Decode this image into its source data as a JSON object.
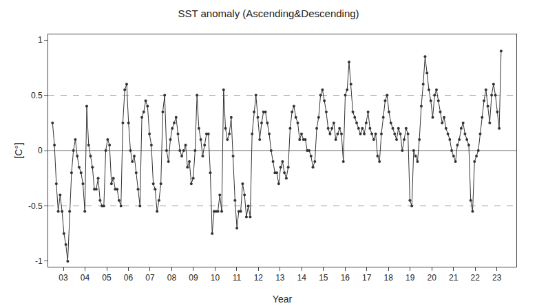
{
  "chart_data": {
    "type": "line",
    "title": "SST anomaly (Ascending&Descending)",
    "xlabel": "Year",
    "ylabel": "[C°]",
    "xlim": [
      2002.3,
      2023.9
    ],
    "ylim": [
      -1.05,
      1.05
    ],
    "yticks": [
      -1,
      -0.5,
      0,
      0.5,
      1
    ],
    "xticks": [
      {
        "value": 2003,
        "label": "03"
      },
      {
        "value": 2004,
        "label": "04"
      },
      {
        "value": 2005,
        "label": "05"
      },
      {
        "value": 2006,
        "label": "06"
      },
      {
        "value": 2007,
        "label": "07"
      },
      {
        "value": 2008,
        "label": "08"
      },
      {
        "value": 2009,
        "label": "09"
      },
      {
        "value": 2010,
        "label": "10"
      },
      {
        "value": 2011,
        "label": "11"
      },
      {
        "value": 2012,
        "label": "12"
      },
      {
        "value": 2013,
        "label": "13"
      },
      {
        "value": 2014,
        "label": "14"
      },
      {
        "value": 2015,
        "label": "15"
      },
      {
        "value": 2016,
        "label": "16"
      },
      {
        "value": 2017,
        "label": "17"
      },
      {
        "value": 2018,
        "label": "18"
      },
      {
        "value": 2019,
        "label": "19"
      },
      {
        "value": 2020,
        "label": "20"
      },
      {
        "value": 2021,
        "label": "21"
      },
      {
        "value": 2022,
        "label": "22"
      },
      {
        "value": 2023,
        "label": "23"
      }
    ],
    "grid": false,
    "color": "#333333",
    "marker": "circle",
    "line_style": "solid",
    "hlines": [
      {
        "value": 0,
        "line_style": "solid",
        "color": "#666666"
      },
      {
        "value": 0.5,
        "line_style": "dashed",
        "color": "#999999"
      },
      {
        "value": -0.5,
        "line_style": "dashed",
        "color": "#999999"
      }
    ],
    "x": [
      2002.5,
      2002.5877,
      2002.6754,
      2002.7631,
      2002.8508,
      2002.9385,
      2003.0262,
      2003.1139,
      2003.2016,
      2003.2893,
      2003.377,
      2003.4647,
      2003.5524,
      2003.6401,
      2003.7278,
      2003.8155,
      2003.9032,
      2003.9909,
      2004.0786,
      2004.1663,
      2004.254,
      2004.3417,
      2004.4294,
      2004.5171,
      2004.6048,
      2004.6925,
      2004.7802,
      2004.8679,
      2004.9556,
      2005.0433,
      2005.131,
      2005.2187,
      2005.3064,
      2005.3941,
      2005.4818,
      2005.5695,
      2005.6572,
      2005.7449,
      2005.8326,
      2005.9203,
      2006.008,
      2006.0957,
      2006.1834,
      2006.2711,
      2006.3588,
      2006.4465,
      2006.5342,
      2006.6219,
      2006.7096,
      2006.7973,
      2006.885,
      2006.9727,
      2007.0604,
      2007.1481,
      2007.2358,
      2007.3235,
      2007.4112,
      2007.4989,
      2007.5866,
      2007.6743,
      2007.762,
      2007.8497,
      2007.9374,
      2008.0251,
      2008.1128,
      2008.2005,
      2008.2882,
      2008.3759,
      2008.4636,
      2008.5513,
      2008.639,
      2008.7267,
      2008.8144,
      2008.9021,
      2008.9898,
      2009.0775,
      2009.1652,
      2009.2529,
      2009.3406,
      2009.4283,
      2009.516,
      2009.6037,
      2009.6914,
      2009.7791,
      2009.8668,
      2009.9545,
      2010.0422,
      2010.1299,
      2010.2176,
      2010.3053,
      2010.393,
      2010.4807,
      2010.5684,
      2010.6561,
      2010.7438,
      2010.8315,
      2010.9192,
      2011.0069,
      2011.0946,
      2011.1823,
      2011.27,
      2011.3577,
      2011.4454,
      2011.5331,
      2011.6208,
      2011.7085,
      2011.7962,
      2011.8839,
      2011.9716,
      2012.0593,
      2012.147,
      2012.2347,
      2012.3224,
      2012.4101,
      2012.4978,
      2012.5855,
      2012.6732,
      2012.7609,
      2012.8486,
      2012.9363,
      2013.024,
      2013.1117,
      2013.1994,
      2013.2871,
      2013.3748,
      2013.4625,
      2013.5502,
      2013.6379,
      2013.7256,
      2013.8133,
      2013.901,
      2013.9887,
      2014.0764,
      2014.1641,
      2014.2518,
      2014.3395,
      2014.4272,
      2014.5149,
      2014.6026,
      2014.6903,
      2014.778,
      2014.8657,
      2014.9534,
      2015.0411,
      2015.1288,
      2015.2165,
      2015.3042,
      2015.3919,
      2015.4796,
      2015.5673,
      2015.655,
      2015.7427,
      2015.8304,
      2015.9181,
      2016.0058,
      2016.0935,
      2016.1812,
      2016.2689,
      2016.3566,
      2016.4443,
      2016.532,
      2016.6197,
      2016.7074,
      2016.7951,
      2016.8828,
      2016.9705,
      2017.0582,
      2017.1459,
      2017.2336,
      2017.3213,
      2017.409,
      2017.4967,
      2017.5844,
      2017.6721,
      2017.7598,
      2017.8475,
      2017.9352,
      2018.0229,
      2018.1106,
      2018.1983,
      2018.286,
      2018.3737,
      2018.4614,
      2018.5491,
      2018.6368,
      2018.7245,
      2018.8122,
      2018.8999,
      2018.9876,
      2019.0753,
      2019.163,
      2019.2507,
      2019.3384,
      2019.4261,
      2019.5138,
      2019.6015,
      2019.6892,
      2019.7769,
      2019.8646,
      2019.9523,
      2020.04,
      2020.1277,
      2020.2154,
      2020.3031,
      2020.3908,
      2020.4785,
      2020.5662,
      2020.6539,
      2020.7416,
      2020.8293,
      2020.917,
      2021.0047,
      2021.0924,
      2021.1801,
      2021.2678,
      2021.3555,
      2021.4432,
      2021.5309,
      2021.6186,
      2021.7063,
      2021.794,
      2021.8817,
      2021.9694,
      2022.0571,
      2022.1448,
      2022.2325,
      2022.3202,
      2022.4079,
      2022.4956,
      2022.5833,
      2022.671,
      2022.7587,
      2022.8464,
      2022.9341,
      2023.0218,
      2023.1095,
      2023.1972
    ],
    "values": [
      0.25,
      0.05,
      -0.3,
      -0.55,
      -0.4,
      -0.55,
      -0.75,
      -0.85,
      -1.0,
      -0.55,
      -0.2,
      0.0,
      0.1,
      -0.05,
      -0.15,
      -0.2,
      -0.3,
      -0.55,
      0.4,
      0.05,
      -0.05,
      -0.15,
      -0.35,
      -0.35,
      -0.25,
      -0.45,
      -0.5,
      -0.5,
      0.0,
      0.1,
      0.05,
      -0.3,
      -0.25,
      -0.35,
      -0.35,
      -0.45,
      -0.5,
      0.25,
      0.55,
      0.6,
      0.25,
      0.0,
      -0.1,
      -0.05,
      -0.2,
      -0.35,
      -0.5,
      0.3,
      0.35,
      0.45,
      0.4,
      0.15,
      0.05,
      -0.3,
      -0.35,
      -0.55,
      -0.45,
      -0.3,
      0.35,
      0.5,
      0.0,
      -0.1,
      0.1,
      0.2,
      0.25,
      0.3,
      0.15,
      0.0,
      -0.05,
      0.0,
      0.05,
      -0.15,
      -0.1,
      -0.3,
      -0.25,
      0.0,
      0.5,
      0.2,
      0.1,
      -0.05,
      0.05,
      0.15,
      0.15,
      -0.2,
      -0.75,
      -0.55,
      -0.55,
      -0.55,
      -0.4,
      -0.55,
      0.55,
      0.2,
      0.1,
      0.15,
      0.3,
      -0.05,
      -0.45,
      -0.7,
      -0.55,
      -0.55,
      -0.3,
      -0.4,
      -0.6,
      -0.5,
      -0.6,
      0.15,
      0.35,
      0.5,
      0.3,
      0.1,
      0.25,
      0.35,
      0.35,
      0.25,
      0.15,
      0.0,
      -0.1,
      -0.2,
      -0.2,
      -0.3,
      -0.15,
      -0.1,
      -0.2,
      -0.25,
      -0.15,
      0.2,
      0.35,
      0.4,
      0.3,
      0.25,
      0.1,
      0.15,
      0.1,
      0.1,
      0.0,
      0.0,
      -0.05,
      -0.15,
      -0.1,
      0.2,
      0.3,
      0.5,
      0.55,
      0.45,
      0.35,
      0.2,
      0.15,
      0.2,
      0.25,
      0.1,
      0.15,
      0.2,
      0.15,
      -0.1,
      0.5,
      0.55,
      0.8,
      0.6,
      0.35,
      0.3,
      0.25,
      0.2,
      0.15,
      0.2,
      0.15,
      0.25,
      0.35,
      0.2,
      0.15,
      0.1,
      0.15,
      -0.05,
      -0.1,
      0.15,
      0.3,
      0.45,
      0.5,
      0.35,
      0.25,
      0.2,
      0.15,
      0.1,
      0.2,
      0.15,
      0.0,
      0.1,
      0.2,
      0.15,
      -0.45,
      -0.5,
      0.0,
      -0.05,
      -0.1,
      0.1,
      0.4,
      0.6,
      0.85,
      0.7,
      0.55,
      0.45,
      0.3,
      0.5,
      0.55,
      0.45,
      0.35,
      0.25,
      0.3,
      0.2,
      0.15,
      0.1,
      0.0,
      -0.05,
      -0.1,
      0.05,
      0.1,
      0.2,
      0.25,
      0.15,
      0.1,
      0.05,
      -0.45,
      -0.55,
      -0.1,
      -0.05,
      0.0,
      0.15,
      0.3,
      0.45,
      0.55,
      0.4,
      0.25,
      0.5,
      0.6,
      0.5,
      0.35,
      0.2,
      0.9
    ]
  }
}
